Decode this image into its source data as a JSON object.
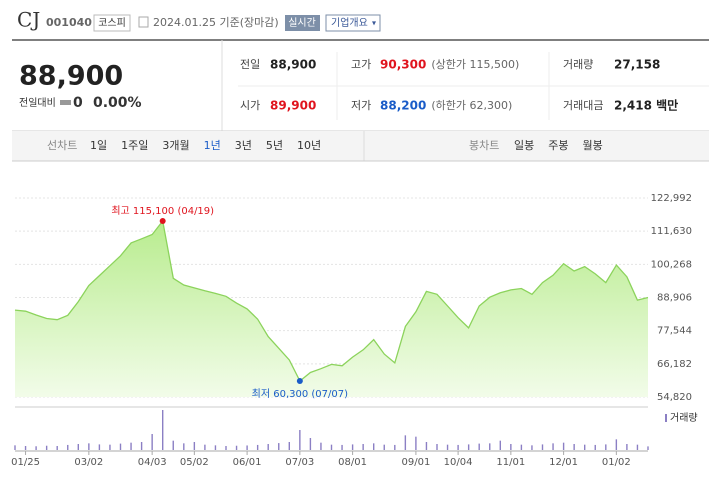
{
  "header": {
    "ticker": "CJ",
    "code": "001040",
    "market": "코스피",
    "date": "2024.01.25 기준(장마감)",
    "realtime": "실시간",
    "company_info": "기업개요"
  },
  "price": {
    "current": "88,900",
    "change_label": "전일대비",
    "change": "0",
    "change_pct": "0.00%"
  },
  "quote": [
    [
      {
        "label": "전일",
        "value": "88,900"
      },
      {
        "label": "고가",
        "value": "90,300",
        "extra": "(상한가 115,500)"
      },
      {
        "label": "거래량",
        "value": "27,158"
      }
    ],
    [
      {
        "label": "시가",
        "value": "89,900"
      },
      {
        "label": "저가",
        "value": "88,200",
        "extra": "(하한가 62,300)"
      },
      {
        "label": "거래대금",
        "value": "2,418 백만"
      }
    ]
  ],
  "tabs": {
    "line_chart": {
      "label": "선차트",
      "options": [
        "1일",
        "1주일",
        "3개월",
        "1년",
        "3년",
        "5년",
        "10년"
      ],
      "selected": 3
    },
    "candle_chart": {
      "label": "봉차트",
      "options": [
        "일봉",
        "주봉",
        "월봉"
      ]
    }
  },
  "chart_data": {
    "type": "area",
    "color": "#8cd35c",
    "values": [
      84600,
      84200,
      82900,
      81700,
      81300,
      82800,
      87500,
      93000,
      96400,
      99800,
      103200,
      107600,
      109000,
      110500,
      115100,
      95500,
      93200,
      92200,
      91200,
      90300,
      89300,
      87000,
      85000,
      81500,
      75500,
      71500,
      67500,
      60300,
      63200,
      64500,
      66000,
      65500,
      68500,
      71000,
      74500,
      69500,
      66500,
      79000,
      84000,
      91000,
      90000,
      86000,
      82000,
      78500,
      86000,
      89000,
      90500,
      91500,
      92000,
      90000,
      94000,
      96500,
      100500,
      98000,
      99500,
      97000,
      94000,
      100000,
      96000,
      88000,
      88900
    ],
    "xlim": [
      0,
      60
    ],
    "xticks": [
      {
        "value": 1,
        "label": "01/25"
      },
      {
        "value": 7,
        "label": "03/02"
      },
      {
        "value": 13,
        "label": "04/03"
      },
      {
        "value": 17,
        "label": "05/02"
      },
      {
        "value": 22,
        "label": "06/01"
      },
      {
        "value": 27,
        "label": "07/03"
      },
      {
        "value": 32,
        "label": "08/01"
      },
      {
        "value": 38,
        "label": "09/01"
      },
      {
        "value": 42,
        "label": "10/04"
      },
      {
        "value": 47,
        "label": "11/01"
      },
      {
        "value": 52,
        "label": "12/01"
      },
      {
        "value": 57,
        "label": "01/02"
      }
    ],
    "ylim": [
      54820,
      122992
    ],
    "yticks": [
      {
        "value": 54820,
        "label": "54,820"
      },
      {
        "value": 66182,
        "label": "66,182"
      },
      {
        "value": 77544,
        "label": "77,544"
      },
      {
        "value": 88906,
        "label": "88,906"
      },
      {
        "value": 100268,
        "label": "100,268"
      },
      {
        "value": 111630,
        "label": "111,630"
      },
      {
        "value": 122992,
        "label": "122,992"
      }
    ],
    "grid": true,
    "high": {
      "label": "최고 115,100 (04/19)",
      "value": 115100,
      "color": "#e0141e"
    },
    "low": {
      "label": "최저 60,300 (07/07)",
      "value": 60300,
      "color": "#1a5cc8"
    },
    "volume": {
      "name": "거래량",
      "color": "#8b7fc4",
      "ylim": [
        0,
        300000
      ],
      "values": [
        35000,
        30000,
        28000,
        32000,
        30000,
        38000,
        45000,
        50000,
        42000,
        40000,
        48000,
        55000,
        60000,
        120000,
        300000,
        70000,
        50000,
        60000,
        40000,
        35000,
        30000,
        32000,
        34000,
        38000,
        45000,
        52000,
        60000,
        150000,
        90000,
        55000,
        40000,
        38000,
        42000,
        45000,
        50000,
        40000,
        38000,
        110000,
        100000,
        60000,
        45000,
        40000,
        38000,
        42000,
        48000,
        50000,
        70000,
        45000,
        40000,
        35000,
        42000,
        50000,
        55000,
        45000,
        40000,
        38000,
        42000,
        80000,
        45000,
        40000,
        27158
      ]
    }
  }
}
